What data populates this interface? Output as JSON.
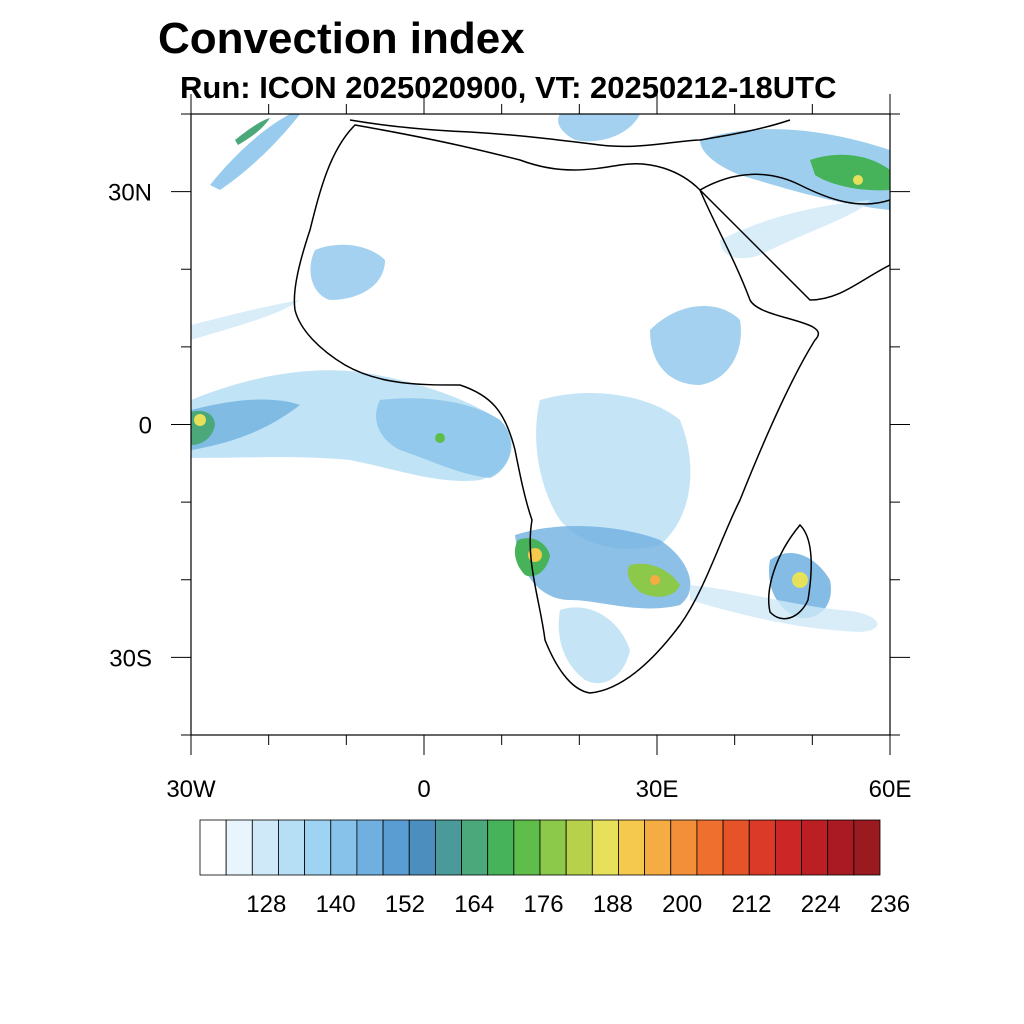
{
  "title": "Convection index",
  "subtitle": "Run: ICON 2025020900,  VT: 20250212-18UTC",
  "map": {
    "lon_range": [
      -30,
      60
    ],
    "lat_range": [
      -40,
      40
    ],
    "lon_labels": [
      {
        "lon": -30,
        "text": "30W"
      },
      {
        "lon": 0,
        "text": "0"
      },
      {
        "lon": 30,
        "text": "30E"
      },
      {
        "lon": 60,
        "text": "60E"
      }
    ],
    "lat_labels": [
      {
        "lat": 30,
        "text": "30N"
      },
      {
        "lat": 0,
        "text": "0"
      },
      {
        "lat": -30,
        "text": "30S"
      }
    ]
  },
  "colorbar": {
    "colors": [
      "#ffffff",
      "#e9f5fc",
      "#cfe9f8",
      "#b6def5",
      "#9ed3f2",
      "#86c2ea",
      "#6fb0e0",
      "#5a9dd2",
      "#4c8fbf",
      "#4a9a9a",
      "#4aa87a",
      "#46b35a",
      "#5fbd4a",
      "#8cc84a",
      "#b7d14a",
      "#e6e05a",
      "#f5c94e",
      "#f5ac42",
      "#f28f38",
      "#ee6f2e",
      "#e55429",
      "#da3a27",
      "#cc2626",
      "#bb1f24",
      "#aa1a22",
      "#991a1f"
    ],
    "labels": [
      "128",
      "140",
      "152",
      "164",
      "176",
      "188",
      "200",
      "212",
      "224",
      "236"
    ]
  }
}
